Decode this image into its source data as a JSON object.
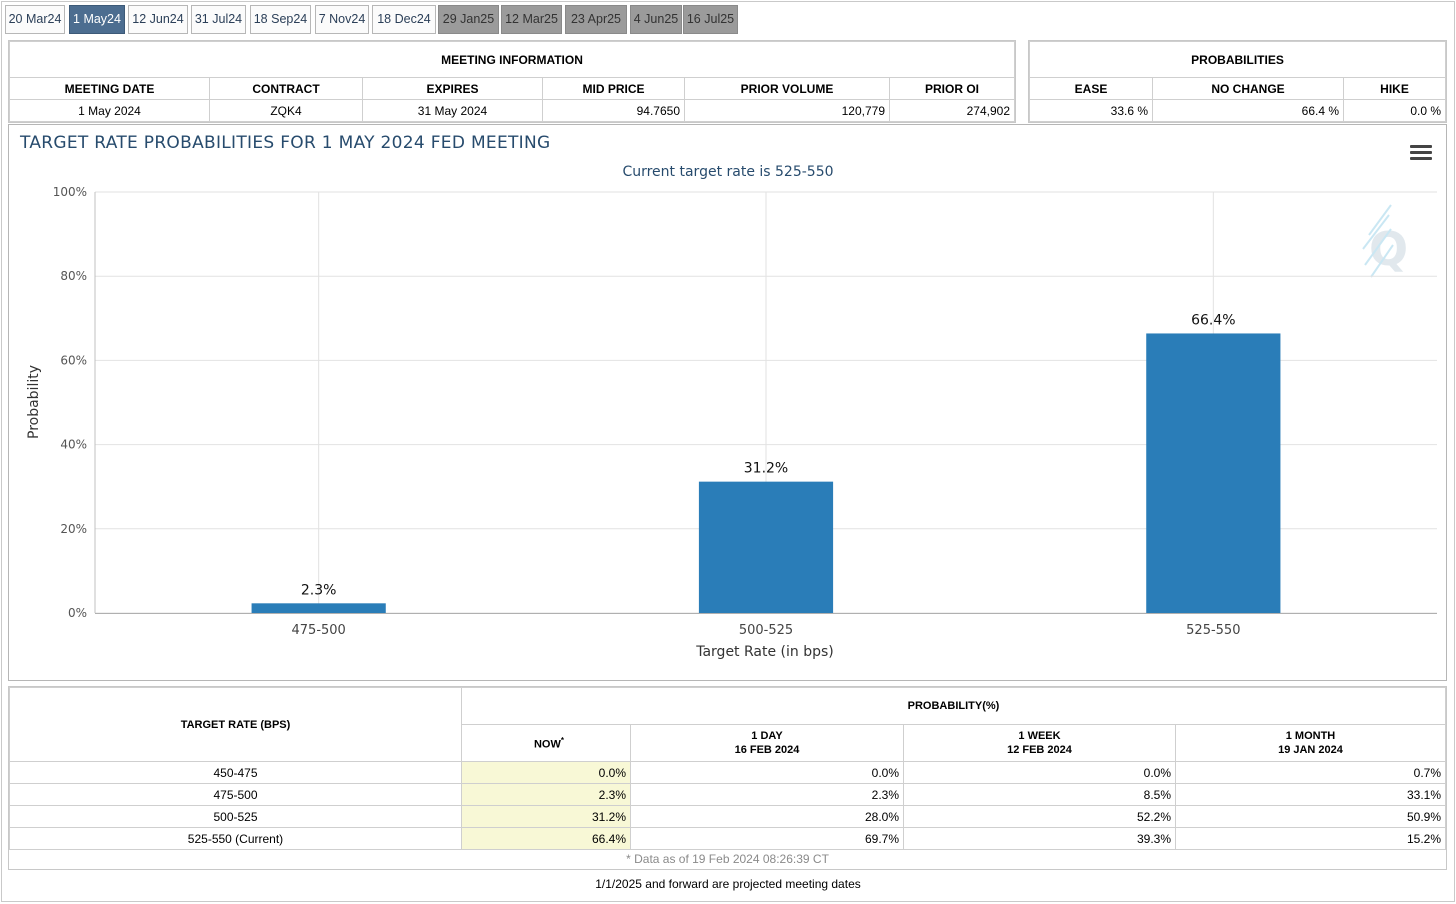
{
  "tabs": [
    {
      "label": "20 Mar24",
      "state": "normal"
    },
    {
      "label": "1 May24",
      "state": "active"
    },
    {
      "label": "12 Jun24",
      "state": "normal"
    },
    {
      "label": "31 Jul24",
      "state": "normal"
    },
    {
      "label": "18 Sep24",
      "state": "normal"
    },
    {
      "label": "7 Nov24",
      "state": "normal"
    },
    {
      "label": "18 Dec24",
      "state": "normal"
    },
    {
      "label": "29 Jan25",
      "state": "projected"
    },
    {
      "label": "12 Mar25",
      "state": "projected"
    },
    {
      "label": "23 Apr25",
      "state": "projected"
    },
    {
      "label": "4 Jun25",
      "state": "projected"
    },
    {
      "label": "16 Jul25",
      "state": "projected"
    }
  ],
  "meeting_info": {
    "title": "MEETING INFORMATION",
    "headers": [
      "MEETING DATE",
      "CONTRACT",
      "EXPIRES",
      "MID PRICE",
      "PRIOR VOLUME",
      "PRIOR OI"
    ],
    "values": [
      "1 May 2024",
      "ZQK4",
      "31 May 2024",
      "94.7650",
      "120,779",
      "274,902"
    ]
  },
  "probabilities": {
    "title": "PROBABILITIES",
    "headers": [
      "EASE",
      "NO CHANGE",
      "HIKE"
    ],
    "values": [
      "33.6 %",
      "66.4 %",
      "0.0 %"
    ]
  },
  "chart_data": {
    "type": "bar",
    "title": "TARGET RATE PROBABILITIES FOR 1 MAY 2024 FED MEETING",
    "subtitle": "Current target rate is 525-550",
    "xlabel": "Target Rate (in bps)",
    "ylabel": "Probability",
    "categories": [
      "475-500",
      "500-525",
      "525-550"
    ],
    "values": [
      2.3,
      31.2,
      66.4
    ],
    "data_labels": [
      "2.3%",
      "31.2%",
      "66.4%"
    ],
    "ylim": [
      0,
      100
    ],
    "yticks": [
      0,
      20,
      40,
      60,
      80,
      100
    ],
    "ytick_labels": [
      "0%",
      "20%",
      "40%",
      "60%",
      "80%",
      "100%"
    ],
    "grid": true,
    "bar_color": "#2a7db8"
  },
  "prob_table": {
    "rate_header": "TARGET RATE (BPS)",
    "group_header": "PROBABILITY(%)",
    "columns": [
      {
        "line1": "NOW",
        "sup": "*",
        "line2": ""
      },
      {
        "line1": "1 DAY",
        "line2": "16 FEB 2024"
      },
      {
        "line1": "1 WEEK",
        "line2": "12 FEB 2024"
      },
      {
        "line1": "1 MONTH",
        "line2": "19 JAN 2024"
      }
    ],
    "rows": [
      {
        "rate": "450-475",
        "now": "0.0%",
        "day": "0.0%",
        "week": "0.0%",
        "month": "0.7%"
      },
      {
        "rate": "475-500",
        "now": "2.3%",
        "day": "2.3%",
        "week": "8.5%",
        "month": "33.1%"
      },
      {
        "rate": "500-525",
        "now": "31.2%",
        "day": "28.0%",
        "week": "52.2%",
        "month": "50.9%"
      },
      {
        "rate": "525-550 (Current)",
        "now": "66.4%",
        "day": "69.7%",
        "week": "39.3%",
        "month": "15.2%"
      }
    ],
    "footnote": "* Data as of 19 Feb 2024 08:26:39 CT"
  },
  "footer_note": "1/1/2025 and forward are projected meeting dates",
  "colors": {
    "accent": "#4c6d90",
    "projected_tab": "#9b9b9b",
    "now_cell": "#f8f8d6",
    "title_text": "#274b6d"
  }
}
